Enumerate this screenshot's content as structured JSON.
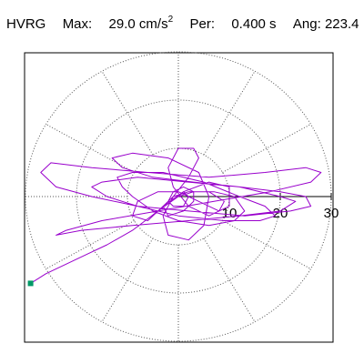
{
  "header": {
    "station": "HVRG",
    "max_label": "Max:",
    "max_value": "29.0 cm/s",
    "max_unit_exp": "2",
    "per_label": "Per:",
    "per_value": "0.400 s",
    "ang_label": "Ang:",
    "ang_value": "223.4"
  },
  "chart_data": {
    "type": "scatter",
    "title": "",
    "xlabel": "",
    "ylabel": "",
    "radial_ticks": [
      10,
      20,
      30
    ],
    "rings": [
      10,
      20,
      30
    ],
    "spoke_angles_deg": [
      0,
      30,
      60,
      90,
      120,
      150,
      180,
      210,
      240,
      270,
      300,
      330
    ],
    "series": [
      {
        "color": "#9900cc",
        "description": "particle motion orbit",
        "points": [
          [
            0,
            0
          ],
          [
            3,
            1
          ],
          [
            7,
            1
          ],
          [
            11,
            0
          ],
          [
            13,
            -3
          ],
          [
            11,
            -5
          ],
          [
            6,
            -6
          ],
          [
            0,
            -5
          ],
          [
            -5,
            -3
          ],
          [
            -9,
            0
          ],
          [
            -11,
            2
          ],
          [
            -12,
            4
          ],
          [
            -9,
            5
          ],
          [
            -3,
            5
          ],
          [
            5,
            3
          ],
          [
            12,
            0
          ],
          [
            17,
            -2
          ],
          [
            19,
            -4
          ],
          [
            16,
            -5
          ],
          [
            9,
            -5
          ],
          [
            0,
            -4
          ],
          [
            -8,
            -2
          ],
          [
            -14,
            0
          ],
          [
            -17,
            2
          ],
          [
            -15,
            3
          ],
          [
            -8,
            4
          ],
          [
            2,
            3
          ],
          [
            12,
            2
          ],
          [
            20,
            1
          ],
          [
            25,
            0
          ],
          [
            26,
            -2
          ],
          [
            22,
            -3
          ],
          [
            13,
            -4
          ],
          [
            2,
            -3
          ],
          [
            -8,
            -2
          ],
          [
            -17,
            0
          ],
          [
            -24,
            2
          ],
          [
            -27,
            5
          ],
          [
            -25,
            7
          ],
          [
            -17,
            6
          ],
          [
            -6,
            5
          ],
          [
            6,
            4
          ],
          [
            17,
            5
          ],
          [
            25,
            6
          ],
          [
            28,
            5
          ],
          [
            26,
            3
          ],
          [
            18,
            1
          ],
          [
            7,
            -1
          ],
          [
            -4,
            -3
          ],
          [
            -15,
            -5
          ],
          [
            -22,
            -7
          ],
          [
            -24,
            -8
          ],
          [
            -19,
            -7
          ],
          [
            -9,
            -6
          ],
          [
            2,
            -5
          ],
          [
            12,
            -4
          ],
          [
            20,
            -3
          ],
          [
            23,
            -1
          ],
          [
            20,
            0
          ],
          [
            12,
            2
          ],
          [
            3,
            3
          ],
          [
            -5,
            4
          ],
          [
            -11,
            6
          ],
          [
            -13,
            8
          ],
          [
            -9,
            9
          ],
          [
            -2,
            8
          ],
          [
            4,
            5
          ],
          [
            6,
            0
          ],
          [
            5,
            -6
          ],
          [
            2,
            -9
          ],
          [
            -2,
            -8
          ],
          [
            -3,
            -4
          ],
          [
            -1,
            0
          ],
          [
            2,
            4
          ],
          [
            4,
            8
          ],
          [
            3,
            10
          ],
          [
            0,
            10
          ],
          [
            -2,
            6
          ],
          [
            -1,
            2
          ],
          [
            2,
            -2
          ],
          [
            6,
            -4
          ],
          [
            10,
            -2
          ],
          [
            10,
            2
          ],
          [
            6,
            3
          ],
          [
            1,
            1
          ],
          [
            -3,
            -2
          ],
          [
            -6,
            -5
          ],
          [
            -9,
            -4
          ],
          [
            -8,
            -1
          ],
          [
            -4,
            1
          ],
          [
            0,
            1
          ],
          [
            4,
            -1
          ],
          [
            8,
            -3
          ],
          [
            9,
            -1
          ],
          [
            6,
            1
          ],
          [
            2,
            1
          ],
          [
            -1,
            0
          ],
          [
            -3,
            -2
          ],
          [
            -2,
            -4
          ],
          [
            1,
            -3
          ],
          [
            3,
            -1
          ],
          [
            3,
            1
          ],
          [
            1,
            2
          ],
          [
            -1,
            1
          ],
          [
            -2,
            -1
          ],
          [
            -1,
            -2
          ],
          [
            1,
            -2
          ],
          [
            2,
            0
          ],
          [
            1,
            1
          ],
          [
            0,
            0
          ],
          [
            -4,
            -3
          ],
          [
            -9,
            -7
          ],
          [
            -14,
            -10
          ],
          [
            -18,
            -12
          ],
          [
            -22,
            -14
          ],
          [
            -26,
            -16
          ],
          [
            -29,
            -18
          ]
        ]
      }
    ],
    "end_marker": {
      "color": "#009966",
      "x": -29,
      "y": -18
    }
  }
}
